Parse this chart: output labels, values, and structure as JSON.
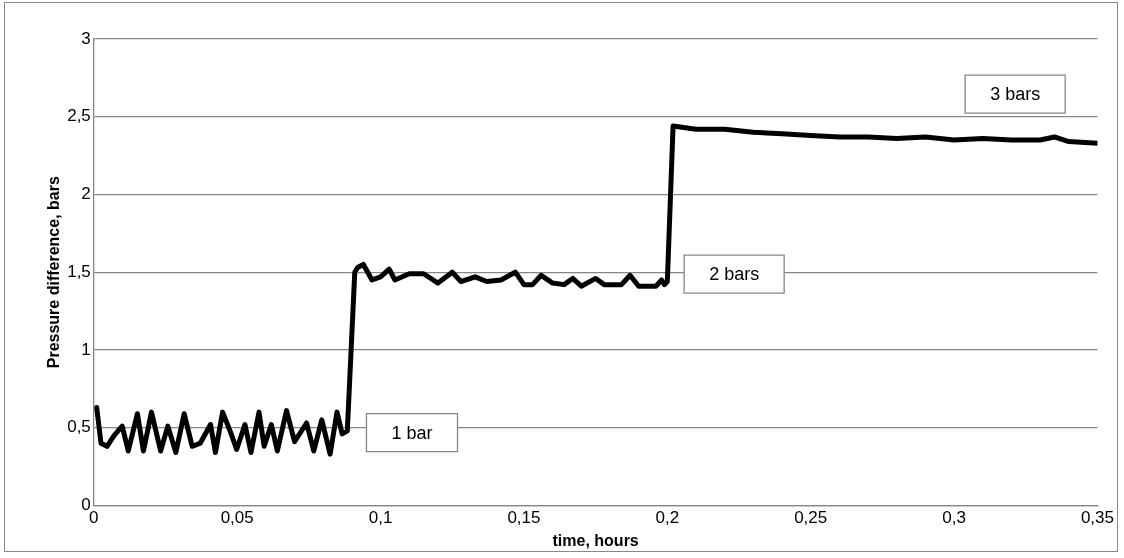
{
  "chart_data": {
    "type": "line",
    "xlabel": "time, hours",
    "ylabel": "Pressure difference, bars",
    "xlim": [
      0,
      0.35
    ],
    "xticks": [
      {
        "value": 0,
        "label": "0"
      },
      {
        "value": 0.05,
        "label": "0,05"
      },
      {
        "value": 0.1,
        "label": "0,1"
      },
      {
        "value": 0.15,
        "label": "0,15"
      },
      {
        "value": 0.2,
        "label": "0,2"
      },
      {
        "value": 0.25,
        "label": "0,25"
      },
      {
        "value": 0.3,
        "label": "0,3"
      },
      {
        "value": 0.35,
        "label": "0,35"
      }
    ],
    "ylim": [
      0,
      3
    ],
    "yticks": [
      {
        "value": 0,
        "label": "0"
      },
      {
        "value": 0.5,
        "label": "0,5"
      },
      {
        "value": 1,
        "label": "1"
      },
      {
        "value": 1.5,
        "label": "1,5"
      },
      {
        "value": 2,
        "label": "2"
      },
      {
        "value": 2.5,
        "label": "2,5"
      },
      {
        "value": 3,
        "label": "3"
      }
    ],
    "grid": "y",
    "legend": false,
    "marker": "none",
    "line_style": "solid",
    "series": [
      {
        "color": "#000000",
        "x": [
          0.001,
          0.0025,
          0.0046,
          0.0071,
          0.0099,
          0.012,
          0.0152,
          0.0173,
          0.0201,
          0.0233,
          0.0258,
          0.0286,
          0.0315,
          0.0343,
          0.0371,
          0.0407,
          0.0424,
          0.0449,
          0.0477,
          0.0498,
          0.0527,
          0.0548,
          0.0576,
          0.0594,
          0.0619,
          0.064,
          0.0672,
          0.07,
          0.0742,
          0.0767,
          0.0795,
          0.0824,
          0.0848,
          0.0866,
          0.0884,
          0.091,
          0.092,
          0.094,
          0.097,
          0.1,
          0.103,
          0.105,
          0.11,
          0.115,
          0.12,
          0.125,
          0.128,
          0.133,
          0.137,
          0.142,
          0.147,
          0.15,
          0.153,
          0.156,
          0.16,
          0.164,
          0.167,
          0.17,
          0.175,
          0.178,
          0.184,
          0.187,
          0.19,
          0.196,
          0.198,
          0.199,
          0.2,
          0.202,
          0.21,
          0.22,
          0.23,
          0.24,
          0.25,
          0.26,
          0.27,
          0.28,
          0.29,
          0.3,
          0.31,
          0.32,
          0.33,
          0.335,
          0.34,
          0.35
        ],
        "values": [
          0.63,
          0.4,
          0.38,
          0.45,
          0.51,
          0.35,
          0.59,
          0.35,
          0.6,
          0.35,
          0.51,
          0.34,
          0.59,
          0.38,
          0.4,
          0.52,
          0.34,
          0.6,
          0.47,
          0.36,
          0.52,
          0.34,
          0.6,
          0.38,
          0.52,
          0.35,
          0.61,
          0.41,
          0.53,
          0.35,
          0.55,
          0.33,
          0.6,
          0.46,
          0.48,
          1.5,
          1.53,
          1.55,
          1.45,
          1.47,
          1.52,
          1.45,
          1.49,
          1.49,
          1.43,
          1.5,
          1.44,
          1.47,
          1.44,
          1.45,
          1.5,
          1.42,
          1.42,
          1.48,
          1.43,
          1.42,
          1.46,
          1.41,
          1.46,
          1.42,
          1.42,
          1.48,
          1.41,
          1.41,
          1.45,
          1.42,
          1.44,
          2.44,
          2.42,
          2.42,
          2.4,
          2.39,
          2.38,
          2.37,
          2.37,
          2.36,
          2.37,
          2.35,
          2.36,
          2.35,
          2.35,
          2.37,
          2.34,
          2.33
        ]
      }
    ],
    "annotations": [
      "1 bar",
      "2 bars",
      "3 bars"
    ]
  }
}
